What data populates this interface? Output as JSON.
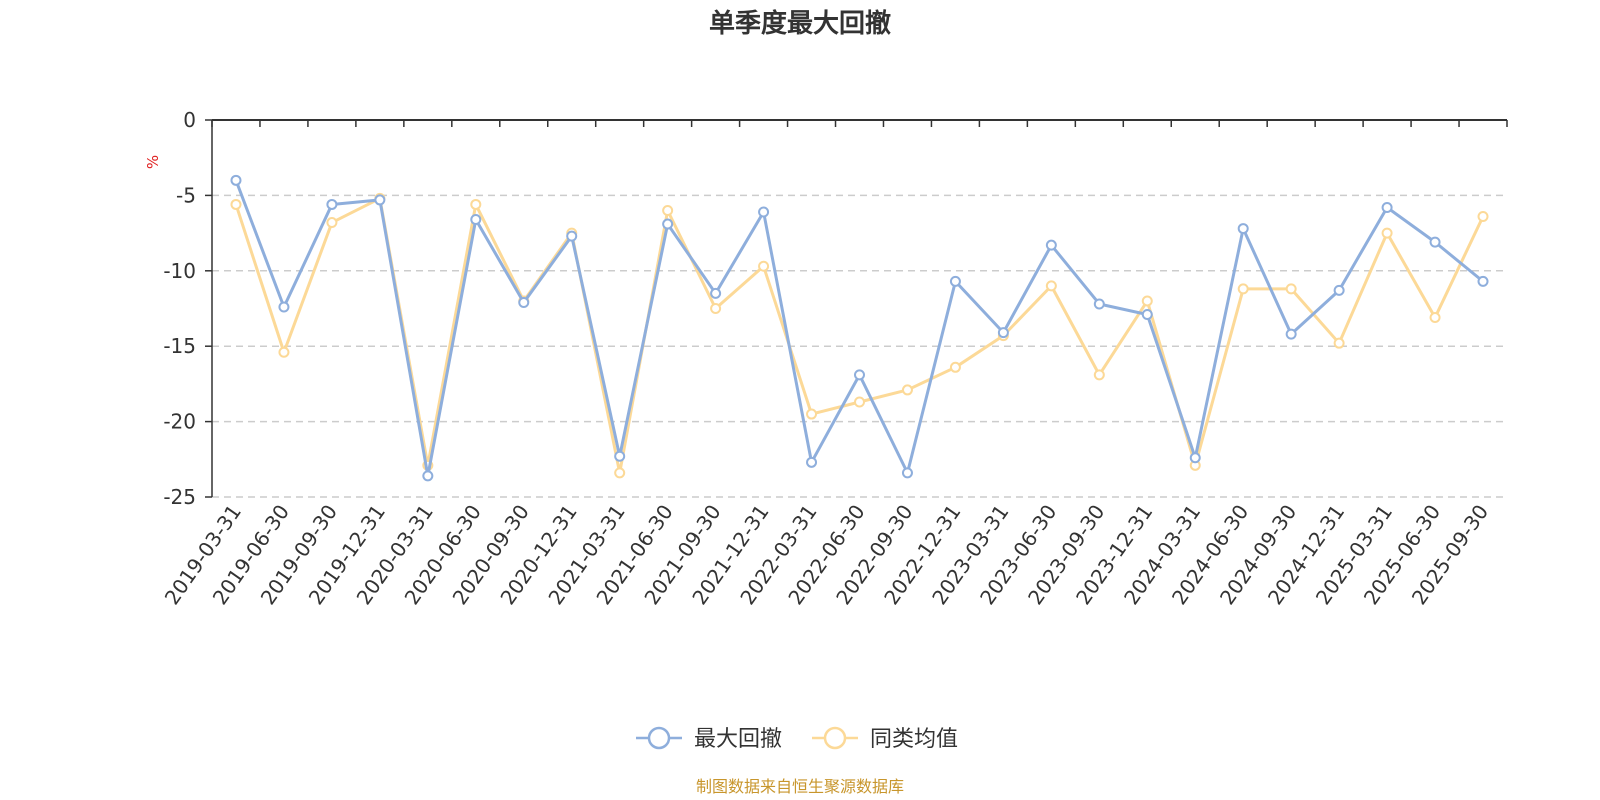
{
  "chart_data": {
    "type": "line",
    "title": "单季度最大回撤",
    "ylabel": "%",
    "xlabel": "",
    "ylim": [
      -25,
      0
    ],
    "yticks": [
      0,
      -5,
      -10,
      -15,
      -20,
      -25
    ],
    "grid": true,
    "legend_position": "bottom",
    "categories": [
      "2019-03-31",
      "2019-06-30",
      "2019-09-30",
      "2019-12-31",
      "2020-03-31",
      "2020-06-30",
      "2020-09-30",
      "2020-12-31",
      "2021-03-31",
      "2021-06-30",
      "2021-09-30",
      "2021-12-31",
      "2022-03-31",
      "2022-06-30",
      "2022-09-30",
      "2022-12-31",
      "2023-03-31",
      "2023-06-30",
      "2023-09-30",
      "2023-12-31",
      "2024-03-31",
      "2024-06-30",
      "2024-09-30",
      "2024-12-31",
      "2025-03-31",
      "2025-06-30",
      "2025-09-30"
    ],
    "series": [
      {
        "name": "最大回撤",
        "color": "#8eaedc",
        "values": [
          -4.0,
          -12.4,
          -5.6,
          -5.3,
          -23.6,
          -6.6,
          -12.1,
          -7.7,
          -22.3,
          -6.9,
          -11.5,
          -6.1,
          -22.7,
          -16.9,
          -23.4,
          -10.7,
          -14.1,
          -8.3,
          -12.2,
          -12.9,
          -22.4,
          -7.2,
          -14.2,
          -11.3,
          -5.8,
          -8.1,
          -10.7
        ]
      },
      {
        "name": "同类均值",
        "color": "#fcd997",
        "values": [
          -5.6,
          -15.4,
          -6.8,
          -5.2,
          -22.9,
          -5.6,
          -12.0,
          -7.5,
          -23.4,
          -6.0,
          -12.5,
          -9.7,
          -19.5,
          -18.7,
          -17.9,
          -16.4,
          -14.3,
          -11.0,
          -16.9,
          -12.0,
          -22.9,
          -11.2,
          -11.2,
          -14.8,
          -7.5,
          -13.1,
          -6.4
        ]
      }
    ]
  },
  "source_note": "制图数据来自恒生聚源数据库"
}
